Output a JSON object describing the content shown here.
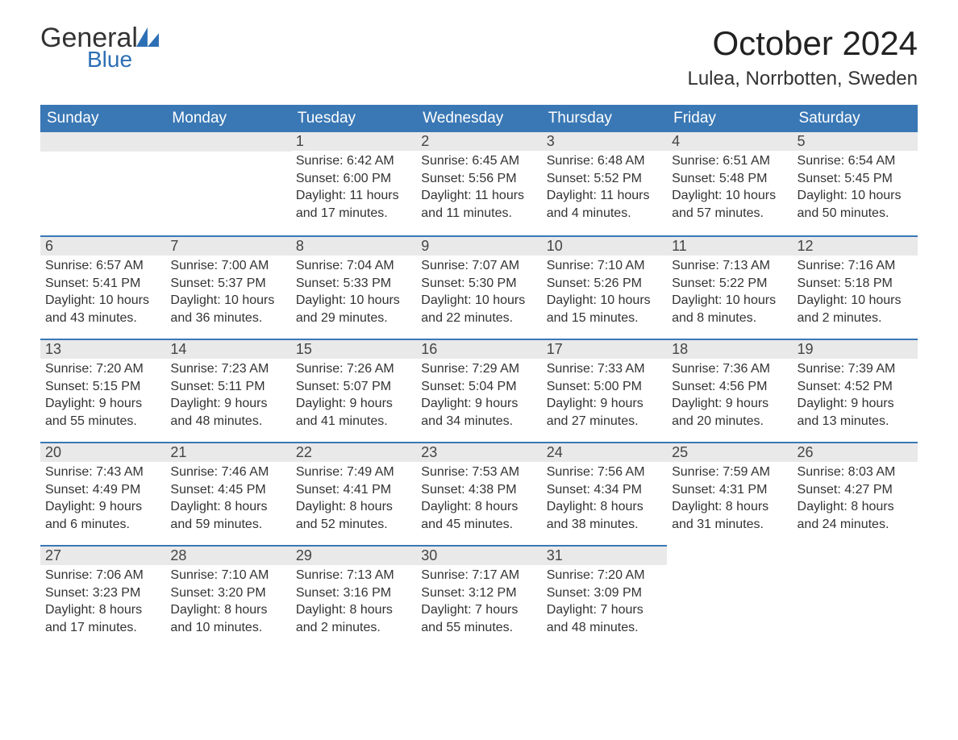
{
  "logo": {
    "line1": "General",
    "line2": "Blue"
  },
  "header": {
    "month_title": "October 2024",
    "location": "Lulea, Norrbotten, Sweden"
  },
  "colors": {
    "header_bg": "#3a78b5",
    "header_text": "#ffffff",
    "daynum_bg": "#e9e9e9",
    "row_border": "#3a78b5",
    "body_text": "#333333",
    "logo_blue": "#2d6fb5",
    "page_bg": "#ffffff"
  },
  "typography": {
    "title_fontsize": 42,
    "location_fontsize": 24,
    "dayheader_fontsize": 19,
    "daynum_fontsize": 18,
    "body_fontsize": 16
  },
  "calendar": {
    "day_headers": [
      "Sunday",
      "Monday",
      "Tuesday",
      "Wednesday",
      "Thursday",
      "Friday",
      "Saturday"
    ],
    "weeks": [
      [
        null,
        null,
        {
          "n": "1",
          "sunrise": "6:42 AM",
          "sunset": "6:00 PM",
          "daylight": "11 hours and 17 minutes."
        },
        {
          "n": "2",
          "sunrise": "6:45 AM",
          "sunset": "5:56 PM",
          "daylight": "11 hours and 11 minutes."
        },
        {
          "n": "3",
          "sunrise": "6:48 AM",
          "sunset": "5:52 PM",
          "daylight": "11 hours and 4 minutes."
        },
        {
          "n": "4",
          "sunrise": "6:51 AM",
          "sunset": "5:48 PM",
          "daylight": "10 hours and 57 minutes."
        },
        {
          "n": "5",
          "sunrise": "6:54 AM",
          "sunset": "5:45 PM",
          "daylight": "10 hours and 50 minutes."
        }
      ],
      [
        {
          "n": "6",
          "sunrise": "6:57 AM",
          "sunset": "5:41 PM",
          "daylight": "10 hours and 43 minutes."
        },
        {
          "n": "7",
          "sunrise": "7:00 AM",
          "sunset": "5:37 PM",
          "daylight": "10 hours and 36 minutes."
        },
        {
          "n": "8",
          "sunrise": "7:04 AM",
          "sunset": "5:33 PM",
          "daylight": "10 hours and 29 minutes."
        },
        {
          "n": "9",
          "sunrise": "7:07 AM",
          "sunset": "5:30 PM",
          "daylight": "10 hours and 22 minutes."
        },
        {
          "n": "10",
          "sunrise": "7:10 AM",
          "sunset": "5:26 PM",
          "daylight": "10 hours and 15 minutes."
        },
        {
          "n": "11",
          "sunrise": "7:13 AM",
          "sunset": "5:22 PM",
          "daylight": "10 hours and 8 minutes."
        },
        {
          "n": "12",
          "sunrise": "7:16 AM",
          "sunset": "5:18 PM",
          "daylight": "10 hours and 2 minutes."
        }
      ],
      [
        {
          "n": "13",
          "sunrise": "7:20 AM",
          "sunset": "5:15 PM",
          "daylight": "9 hours and 55 minutes."
        },
        {
          "n": "14",
          "sunrise": "7:23 AM",
          "sunset": "5:11 PM",
          "daylight": "9 hours and 48 minutes."
        },
        {
          "n": "15",
          "sunrise": "7:26 AM",
          "sunset": "5:07 PM",
          "daylight": "9 hours and 41 minutes."
        },
        {
          "n": "16",
          "sunrise": "7:29 AM",
          "sunset": "5:04 PM",
          "daylight": "9 hours and 34 minutes."
        },
        {
          "n": "17",
          "sunrise": "7:33 AM",
          "sunset": "5:00 PM",
          "daylight": "9 hours and 27 minutes."
        },
        {
          "n": "18",
          "sunrise": "7:36 AM",
          "sunset": "4:56 PM",
          "daylight": "9 hours and 20 minutes."
        },
        {
          "n": "19",
          "sunrise": "7:39 AM",
          "sunset": "4:52 PM",
          "daylight": "9 hours and 13 minutes."
        }
      ],
      [
        {
          "n": "20",
          "sunrise": "7:43 AM",
          "sunset": "4:49 PM",
          "daylight": "9 hours and 6 minutes."
        },
        {
          "n": "21",
          "sunrise": "7:46 AM",
          "sunset": "4:45 PM",
          "daylight": "8 hours and 59 minutes."
        },
        {
          "n": "22",
          "sunrise": "7:49 AM",
          "sunset": "4:41 PM",
          "daylight": "8 hours and 52 minutes."
        },
        {
          "n": "23",
          "sunrise": "7:53 AM",
          "sunset": "4:38 PM",
          "daylight": "8 hours and 45 minutes."
        },
        {
          "n": "24",
          "sunrise": "7:56 AM",
          "sunset": "4:34 PM",
          "daylight": "8 hours and 38 minutes."
        },
        {
          "n": "25",
          "sunrise": "7:59 AM",
          "sunset": "4:31 PM",
          "daylight": "8 hours and 31 minutes."
        },
        {
          "n": "26",
          "sunrise": "8:03 AM",
          "sunset": "4:27 PM",
          "daylight": "8 hours and 24 minutes."
        }
      ],
      [
        {
          "n": "27",
          "sunrise": "7:06 AM",
          "sunset": "3:23 PM",
          "daylight": "8 hours and 17 minutes."
        },
        {
          "n": "28",
          "sunrise": "7:10 AM",
          "sunset": "3:20 PM",
          "daylight": "8 hours and 10 minutes."
        },
        {
          "n": "29",
          "sunrise": "7:13 AM",
          "sunset": "3:16 PM",
          "daylight": "8 hours and 2 minutes."
        },
        {
          "n": "30",
          "sunrise": "7:17 AM",
          "sunset": "3:12 PM",
          "daylight": "7 hours and 55 minutes."
        },
        {
          "n": "31",
          "sunrise": "7:20 AM",
          "sunset": "3:09 PM",
          "daylight": "7 hours and 48 minutes."
        },
        null,
        null
      ]
    ]
  }
}
